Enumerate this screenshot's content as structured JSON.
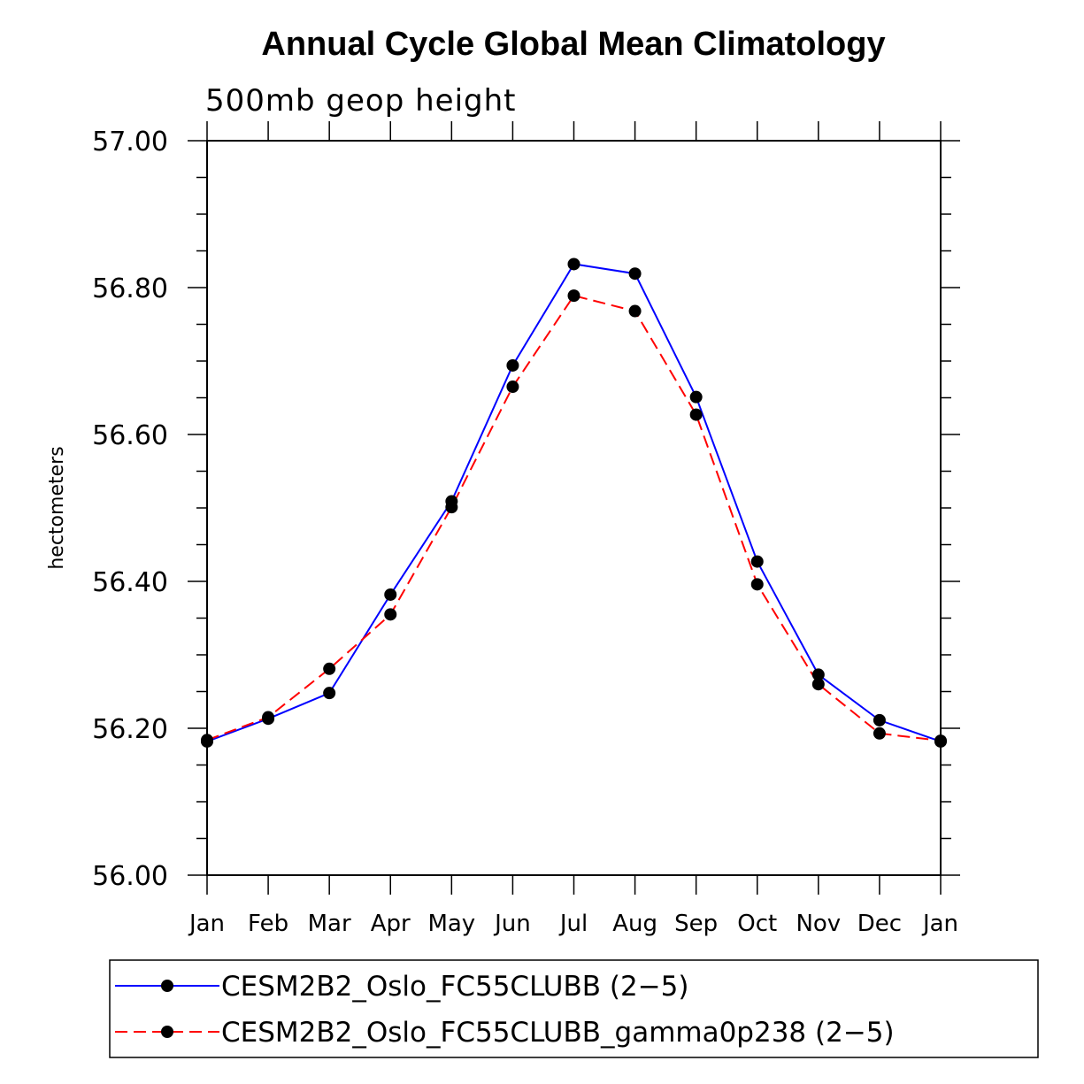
{
  "chart_data": {
    "type": "line",
    "title": "Annual Cycle Global Mean Climatology",
    "subtitle": "500mb geop height",
    "xlabel": "",
    "ylabel": "hectometers",
    "categories": [
      "Jan",
      "Feb",
      "Mar",
      "Apr",
      "May",
      "Jun",
      "Jul",
      "Aug",
      "Sep",
      "Oct",
      "Nov",
      "Dec",
      "Jan"
    ],
    "ylim": [
      56.0,
      57.0
    ],
    "yticks": [
      "56.00",
      "56.20",
      "56.40",
      "56.60",
      "56.80",
      "57.00"
    ],
    "grid": false,
    "legend_position": "bottom",
    "series": [
      {
        "name": "CESM2B2_Oslo_FC55CLUBB (2−5)",
        "color": "#0000ff",
        "dash": "solid",
        "values": [
          56.182,
          56.213,
          56.248,
          56.382,
          56.509,
          56.694,
          56.832,
          56.819,
          56.651,
          56.427,
          56.273,
          56.211,
          56.182
        ]
      },
      {
        "name": "CESM2B2_Oslo_FC55CLUBB_gamma0p238 (2−5)",
        "color": "#ff0000",
        "dash": "dashed",
        "values": [
          56.184,
          56.215,
          56.281,
          56.355,
          56.501,
          56.665,
          56.789,
          56.768,
          56.627,
          56.396,
          56.26,
          56.193,
          56.183
        ]
      }
    ]
  }
}
